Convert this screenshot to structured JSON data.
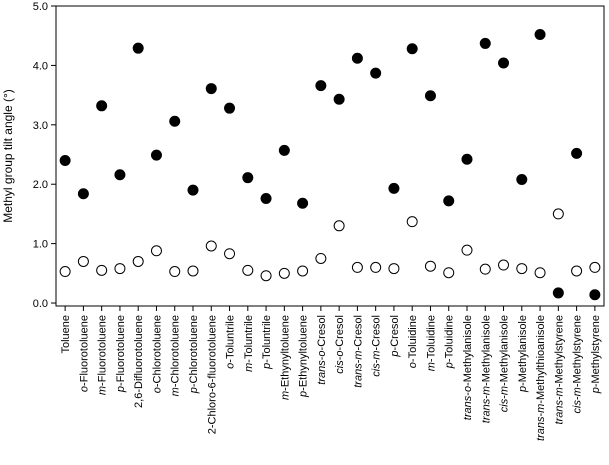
{
  "chart_data": {
    "type": "scatter",
    "ylabel": "Methyl group tilt angle (°)",
    "ylim": [
      -0.05,
      5.0
    ],
    "yticks": [
      "0.0",
      "1.0",
      "2.0",
      "3.0",
      "4.0",
      "5.0"
    ],
    "grid": false,
    "categories": [
      [
        {
          "t": "Toluene",
          "i": false
        }
      ],
      [
        {
          "t": "o",
          "i": true
        },
        {
          "t": "-Fluorotoluene",
          "i": false
        }
      ],
      [
        {
          "t": "m",
          "i": true
        },
        {
          "t": "-Fluorotoluene",
          "i": false
        }
      ],
      [
        {
          "t": "p",
          "i": true
        },
        {
          "t": "-Fluorotoluene",
          "i": false
        }
      ],
      [
        {
          "t": "2,6-Difluorotoluene",
          "i": false
        }
      ],
      [
        {
          "t": "o",
          "i": true
        },
        {
          "t": "-Chlorotoluene",
          "i": false
        }
      ],
      [
        {
          "t": "m",
          "i": true
        },
        {
          "t": "-Chlorotoluene",
          "i": false
        }
      ],
      [
        {
          "t": "p",
          "i": true
        },
        {
          "t": "-Chlorotoluene",
          "i": false
        }
      ],
      [
        {
          "t": "2-Chloro-6-fluorotoluene",
          "i": false
        }
      ],
      [
        {
          "t": "o",
          "i": true
        },
        {
          "t": "-Toluntrile",
          "i": false
        }
      ],
      [
        {
          "t": "m",
          "i": true
        },
        {
          "t": "-Toluntrile",
          "i": false
        }
      ],
      [
        {
          "t": "p",
          "i": true
        },
        {
          "t": "-Toluntrile",
          "i": false
        }
      ],
      [
        {
          "t": "m",
          "i": true
        },
        {
          "t": "-Ethynyltoluene",
          "i": false
        }
      ],
      [
        {
          "t": "p",
          "i": true
        },
        {
          "t": "-Ethynyltoluene",
          "i": false
        }
      ],
      [
        {
          "t": "trans",
          "i": true
        },
        {
          "t": "-",
          "i": false
        },
        {
          "t": "o",
          "i": true
        },
        {
          "t": "-Cresol",
          "i": false
        }
      ],
      [
        {
          "t": "cis",
          "i": true
        },
        {
          "t": "-",
          "i": false
        },
        {
          "t": "o",
          "i": true
        },
        {
          "t": "-Cresol",
          "i": false
        }
      ],
      [
        {
          "t": "trans",
          "i": true
        },
        {
          "t": "-",
          "i": false
        },
        {
          "t": "m",
          "i": true
        },
        {
          "t": "-Cresol",
          "i": false
        }
      ],
      [
        {
          "t": "cis",
          "i": true
        },
        {
          "t": "-",
          "i": false
        },
        {
          "t": "m",
          "i": true
        },
        {
          "t": "-Cresol",
          "i": false
        }
      ],
      [
        {
          "t": "p",
          "i": true
        },
        {
          "t": "-Cresol",
          "i": false
        }
      ],
      [
        {
          "t": "o",
          "i": true
        },
        {
          "t": "-Toluidine",
          "i": false
        }
      ],
      [
        {
          "t": "m",
          "i": true
        },
        {
          "t": "-Toluidine",
          "i": false
        }
      ],
      [
        {
          "t": "p",
          "i": true
        },
        {
          "t": "-Toluidine",
          "i": false
        }
      ],
      [
        {
          "t": "trans",
          "i": true
        },
        {
          "t": "-",
          "i": false
        },
        {
          "t": "o",
          "i": true
        },
        {
          "t": "-Methylanisole",
          "i": false
        }
      ],
      [
        {
          "t": "trans",
          "i": true
        },
        {
          "t": "-",
          "i": false
        },
        {
          "t": "m",
          "i": true
        },
        {
          "t": "-Methylanisole",
          "i": false
        }
      ],
      [
        {
          "t": "cis",
          "i": true
        },
        {
          "t": "-",
          "i": false
        },
        {
          "t": "m",
          "i": true
        },
        {
          "t": "-Methylanisole",
          "i": false
        }
      ],
      [
        {
          "t": "p",
          "i": true
        },
        {
          "t": "-Methylanisole",
          "i": false
        }
      ],
      [
        {
          "t": "trans",
          "i": true
        },
        {
          "t": "-",
          "i": false
        },
        {
          "t": "m",
          "i": true
        },
        {
          "t": "-Methylthioanisole",
          "i": false
        }
      ],
      [
        {
          "t": "trans",
          "i": true
        },
        {
          "t": "-",
          "i": false
        },
        {
          "t": "m",
          "i": true
        },
        {
          "t": "-Methylstyrene",
          "i": false
        }
      ],
      [
        {
          "t": "cis",
          "i": true
        },
        {
          "t": "-",
          "i": false
        },
        {
          "t": "m",
          "i": true
        },
        {
          "t": "-Methylstyrene",
          "i": false
        }
      ],
      [
        {
          "t": "p",
          "i": true
        },
        {
          "t": "-Methylstyrene",
          "i": false
        }
      ]
    ],
    "series": [
      {
        "marker": "filled-circle",
        "values": [
          2.4,
          1.84,
          3.32,
          2.16,
          4.29,
          2.49,
          3.06,
          1.9,
          3.61,
          3.28,
          2.11,
          1.76,
          2.57,
          1.68,
          3.66,
          3.43,
          4.12,
          3.87,
          1.93,
          4.28,
          3.49,
          1.72,
          2.42,
          4.37,
          4.04,
          2.08,
          4.52,
          0.17,
          2.52,
          0.14
        ]
      },
      {
        "marker": "open-circle",
        "values": [
          0.53,
          0.7,
          0.55,
          0.58,
          0.7,
          0.88,
          0.53,
          0.54,
          0.96,
          0.83,
          0.55,
          0.46,
          0.5,
          0.54,
          0.75,
          1.3,
          0.6,
          0.6,
          0.58,
          1.37,
          0.62,
          0.51,
          0.89,
          0.57,
          0.64,
          0.58,
          0.51,
          1.5,
          0.54,
          0.6
        ]
      }
    ]
  }
}
